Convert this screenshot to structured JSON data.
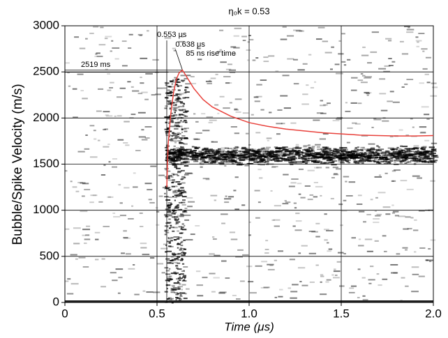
{
  "chart_data": {
    "type": "line",
    "title": "η₀k = 0.53",
    "xlabel": "Time (μs)",
    "ylabel": "Bubble/Spike Velocity (m/s)",
    "xlim": [
      0,
      2
    ],
    "ylim": [
      0,
      3000
    ],
    "xticks": [
      0,
      0.5,
      {
        "value": 1,
        "label": "1.0"
      },
      1.5,
      {
        "value": 2,
        "label": "2.0"
      }
    ],
    "yticks": [
      0,
      500,
      1000,
      1500,
      2000,
      2500,
      3000
    ],
    "grid": true,
    "series": [
      {
        "color": "#e8403a",
        "x": [
          0.553,
          0.56,
          0.575,
          0.59,
          0.605,
          0.62,
          0.638,
          0.66,
          0.7,
          0.75,
          0.8,
          0.9,
          1.0,
          1.1,
          1.2,
          1.4,
          1.6,
          1.8,
          1.9,
          2.0
        ],
        "values": [
          1250,
          1700,
          2050,
          2280,
          2420,
          2490,
          2519,
          2450,
          2320,
          2200,
          2120,
          2020,
          1950,
          1910,
          1880,
          1840,
          1815,
          1805,
          1805,
          1810
        ]
      }
    ],
    "annotations": [
      {
        "text": "0.553 μs",
        "x": 0.553
      },
      {
        "text": "0.638 μs",
        "x": 0.638
      },
      {
        "text": "85 ns rise time"
      },
      {
        "text": "2519 ms",
        "y": 2519
      }
    ]
  }
}
